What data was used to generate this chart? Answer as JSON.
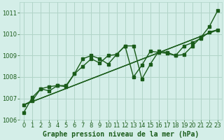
{
  "xlabel": "Graphe pression niveau de la mer (hPa)",
  "background_color": "#d4eee8",
  "plot_bg_color": "#d4eee8",
  "grid_color": "#b0d4c8",
  "line_color": "#1a5c1a",
  "ylim": [
    1006.0,
    1011.5
  ],
  "xlim": [
    -0.5,
    23.5
  ],
  "yticks": [
    1006,
    1007,
    1008,
    1009,
    1010,
    1011
  ],
  "xticks": [
    0,
    1,
    2,
    3,
    4,
    5,
    6,
    7,
    8,
    9,
    10,
    11,
    12,
    13,
    14,
    15,
    16,
    17,
    18,
    19,
    20,
    21,
    22,
    23
  ],
  "series1_x": [
    0,
    1,
    2,
    3,
    4,
    5,
    6,
    7,
    8,
    9,
    10,
    11,
    12,
    13,
    14,
    15,
    16,
    17,
    18,
    19,
    20,
    21,
    22,
    23
  ],
  "series1_y": [
    1006.35,
    1007.05,
    1007.45,
    1007.35,
    1007.6,
    1007.55,
    1008.15,
    1008.85,
    1009.0,
    1008.85,
    1008.6,
    1009.05,
    1009.45,
    1009.45,
    1007.9,
    1008.6,
    1009.2,
    1009.15,
    1009.0,
    1009.05,
    1009.45,
    1009.85,
    1010.35,
    1011.1
  ],
  "series2_x": [
    0,
    1,
    2,
    3,
    4,
    5,
    6,
    7,
    8,
    9,
    10,
    11,
    12,
    13,
    14,
    15,
    16,
    17,
    18,
    19,
    20,
    21,
    22,
    23
  ],
  "series2_y": [
    1006.7,
    1006.9,
    1007.45,
    1007.55,
    1007.6,
    1007.6,
    1008.15,
    1008.5,
    1008.85,
    1008.65,
    1009.0,
    1009.05,
    1009.45,
    1008.0,
    1008.55,
    1009.2,
    1009.15,
    1009.1,
    1009.0,
    1009.45,
    1009.6,
    1009.8,
    1010.1,
    1010.2
  ],
  "trend_x": [
    0,
    23
  ],
  "trend_y": [
    1006.7,
    1010.2
  ],
  "marker_size": 2.5,
  "line_width": 1.0,
  "xlabel_fontsize": 7,
  "tick_fontsize": 6
}
